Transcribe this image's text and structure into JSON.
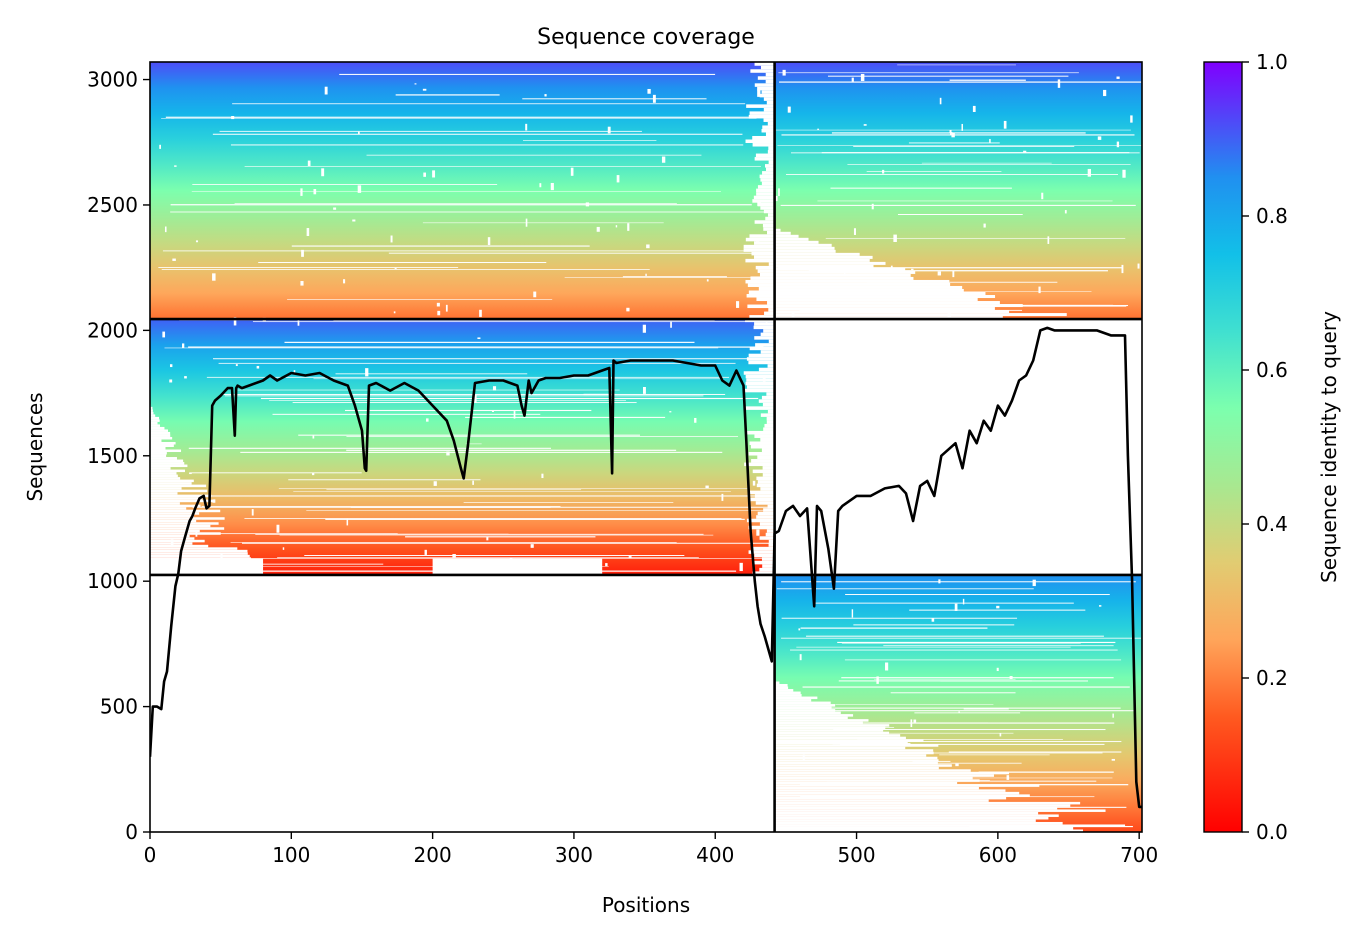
{
  "chart_data": {
    "type": "heatmap",
    "title": "Sequence coverage",
    "xlabel": "Positions",
    "ylabel": "Sequences",
    "xlim": [
      0,
      702
    ],
    "ylim": [
      0,
      3070
    ],
    "xticks": [
      0,
      100,
      200,
      300,
      400,
      500,
      600,
      700
    ],
    "yticks": [
      0,
      500,
      1000,
      1500,
      2000,
      2500,
      3000
    ],
    "colorbar": {
      "label": "Sequence identity to query",
      "range": [
        0,
        1
      ],
      "ticks": [
        "0.0",
        "0.2",
        "0.4",
        "0.6",
        "0.8",
        "1.0"
      ],
      "colormap": "rainbow_r"
    },
    "dividers": {
      "vertical_x": 442,
      "horizontal_y": [
        1025,
        2045
      ]
    },
    "blocks": [
      {
        "name": "block-top",
        "y_range": [
          2045,
          3070
        ],
        "x_range": [
          0,
          442
        ],
        "identity_top": 0.92,
        "identity_bottom": 0.18
      },
      {
        "name": "block-top-right",
        "y_range": [
          2045,
          3070
        ],
        "x_range": [
          442,
          702
        ],
        "identity_top": 0.92,
        "identity_bottom": 0.18
      },
      {
        "name": "block-middle",
        "y_range": [
          1025,
          2045
        ],
        "x_range": [
          0,
          442
        ],
        "identity_top": 0.9,
        "identity_bottom": 0.05
      },
      {
        "name": "block-bottom",
        "y_range": [
          0,
          1025
        ],
        "x_range": [
          442,
          702
        ],
        "identity_top": 0.85,
        "identity_bottom": 0.12
      }
    ],
    "coverage_line": {
      "x": [
        0,
        2,
        5,
        8,
        10,
        12,
        15,
        18,
        20,
        22,
        25,
        28,
        30,
        32,
        35,
        38,
        40,
        42,
        44,
        45,
        46,
        50,
        55,
        58,
        60,
        61,
        62,
        65,
        70,
        80,
        85,
        90,
        100,
        110,
        120,
        130,
        140,
        145,
        150,
        152,
        153,
        155,
        160,
        170,
        180,
        190,
        200,
        210,
        215,
        220,
        222,
        225,
        230,
        240,
        250,
        260,
        263,
        265,
        268,
        270,
        275,
        280,
        290,
        300,
        310,
        320,
        325,
        327,
        328,
        330,
        340,
        350,
        360,
        370,
        380,
        390,
        400,
        405,
        410,
        415,
        420,
        422,
        425,
        428,
        430,
        432,
        435,
        440,
        442,
        445,
        450,
        455,
        460,
        465,
        470,
        472,
        475,
        480,
        484,
        487,
        490,
        500,
        510,
        520,
        530,
        535,
        540,
        545,
        550,
        555,
        560,
        570,
        575,
        580,
        585,
        590,
        595,
        600,
        605,
        610,
        615,
        620,
        625,
        630,
        635,
        640,
        650,
        660,
        670,
        680,
        690,
        692,
        695,
        698,
        700,
        702
      ],
      "y": [
        300,
        500,
        500,
        490,
        600,
        640,
        820,
        980,
        1030,
        1120,
        1180,
        1240,
        1260,
        1290,
        1330,
        1340,
        1290,
        1300,
        1700,
        1710,
        1720,
        1740,
        1770,
        1770,
        1580,
        1770,
        1780,
        1770,
        1780,
        1800,
        1820,
        1800,
        1830,
        1820,
        1830,
        1800,
        1780,
        1700,
        1600,
        1450,
        1440,
        1780,
        1790,
        1760,
        1790,
        1760,
        1700,
        1640,
        1560,
        1450,
        1410,
        1540,
        1790,
        1800,
        1800,
        1780,
        1700,
        1660,
        1800,
        1750,
        1800,
        1810,
        1810,
        1820,
        1820,
        1840,
        1850,
        1430,
        1880,
        1870,
        1880,
        1880,
        1880,
        1880,
        1870,
        1860,
        1860,
        1800,
        1780,
        1840,
        1780,
        1560,
        1200,
        1000,
        900,
        830,
        780,
        680,
        1190,
        1200,
        1280,
        1300,
        1260,
        1290,
        900,
        1300,
        1280,
        1130,
        970,
        1280,
        1300,
        1340,
        1340,
        1370,
        1380,
        1350,
        1240,
        1380,
        1400,
        1340,
        1500,
        1550,
        1450,
        1600,
        1550,
        1640,
        1600,
        1700,
        1660,
        1720,
        1800,
        1820,
        1880,
        2000,
        2010,
        2000,
        2000,
        2000,
        2000,
        1980,
        1980,
        1500,
        1000,
        200,
        100,
        100
      ]
    }
  }
}
